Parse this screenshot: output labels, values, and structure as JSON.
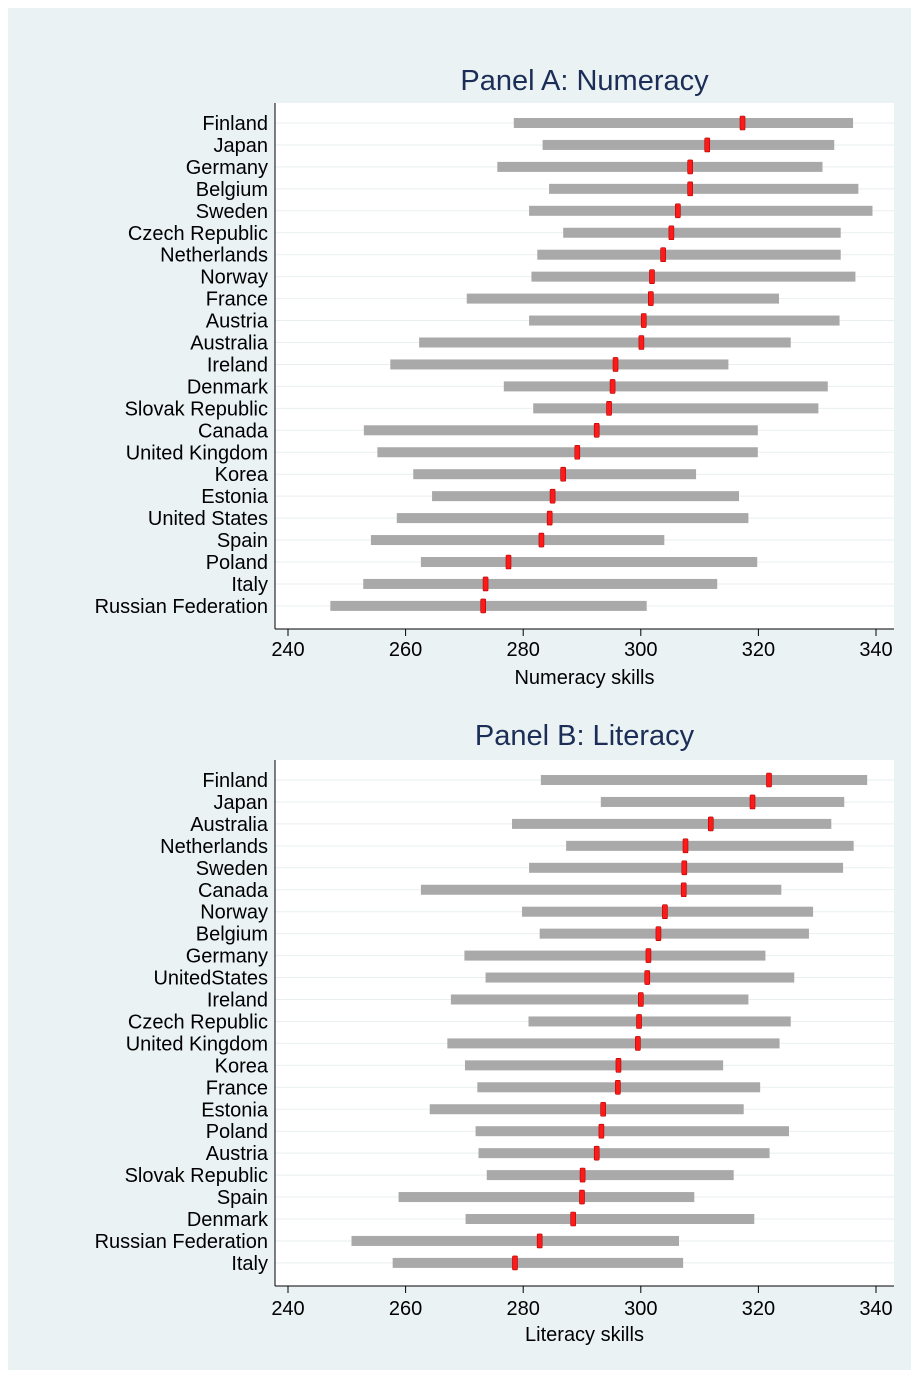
{
  "figure": {
    "background": "#eaf2f3",
    "plot_background": "#ffffff",
    "range_color": "#a9a9a9",
    "mean_color": "#ff1a1a",
    "title_color": "#1c2e57"
  },
  "chart_data": [
    {
      "type": "range",
      "title": "Panel A: Numeracy",
      "xlabel": "Numeracy skills",
      "xlim": [
        240,
        340
      ],
      "xticks": [
        240,
        260,
        280,
        300,
        320,
        340
      ],
      "grid": "horizontal",
      "series_names": [
        "low",
        "high",
        "mean"
      ],
      "categories": [
        "Finland",
        "Japan",
        "Germany",
        "Belgium",
        "Sweden",
        "Czech Republic",
        "Netherlands",
        "Norway",
        "France",
        "Austria",
        "Australia",
        "Ireland",
        "Denmark",
        "Slovak Republic",
        "Canada",
        "United Kingdom",
        "Korea",
        "Estonia",
        "United States",
        "Spain",
        "Poland",
        "Italy",
        "Russian Federation"
      ],
      "low": [
        278.4,
        283.3,
        275.6,
        284.4,
        281.0,
        286.8,
        282.4,
        281.4,
        270.4,
        281.0,
        262.3,
        257.4,
        276.7,
        281.7,
        252.9,
        255.2,
        261.3,
        264.5,
        258.5,
        254.1,
        262.6,
        252.8,
        247.2
      ],
      "high": [
        336.1,
        332.9,
        330.9,
        337.0,
        339.4,
        334.0,
        334.0,
        336.5,
        323.5,
        333.8,
        325.5,
        314.9,
        331.8,
        330.2,
        319.9,
        319.9,
        309.4,
        316.7,
        318.3,
        304.0,
        319.8,
        313.0,
        301.0
      ],
      "mean": [
        317.3,
        311.3,
        308.4,
        308.4,
        306.3,
        305.2,
        303.8,
        301.9,
        301.7,
        300.5,
        300.1,
        295.7,
        295.2,
        294.6,
        292.5,
        289.2,
        286.8,
        285.0,
        284.5,
        283.1,
        277.5,
        273.6,
        273.2
      ]
    },
    {
      "type": "range",
      "title": "Panel B: Literacy",
      "xlabel": "Literacy  skills",
      "xlim": [
        240,
        340
      ],
      "xticks": [
        240,
        260,
        280,
        300,
        320,
        340
      ],
      "grid": "horizontal",
      "series_names": [
        "low",
        "high",
        "mean"
      ],
      "categories": [
        "Finland",
        "Japan",
        "Australia",
        "Netherlands",
        "Sweden",
        "Canada",
        "Norway",
        "Belgium",
        "Germany",
        "UnitedStates",
        "Ireland",
        "Czech Republic",
        "United Kingdom",
        "Korea",
        "France",
        "Estonia",
        "Poland",
        "Austria",
        "Slovak Republic",
        "Spain",
        "Denmark",
        "Russian Federation",
        "Italy"
      ],
      "low": [
        283.0,
        293.2,
        278.1,
        287.3,
        281.0,
        262.6,
        279.8,
        282.8,
        270.0,
        273.6,
        267.7,
        280.9,
        267.1,
        270.1,
        272.2,
        264.1,
        271.9,
        272.4,
        273.8,
        258.8,
        270.2,
        250.8,
        257.8
      ],
      "high": [
        338.5,
        334.6,
        332.4,
        336.2,
        334.4,
        323.9,
        329.3,
        328.6,
        321.2,
        326.1,
        318.3,
        325.5,
        323.6,
        314.0,
        320.3,
        317.5,
        325.2,
        321.9,
        315.8,
        309.1,
        319.3,
        306.5,
        307.2
      ],
      "mean": [
        321.8,
        319.0,
        311.9,
        307.6,
        307.4,
        307.3,
        304.1,
        303.0,
        301.3,
        301.1,
        300.0,
        299.7,
        299.5,
        296.2,
        296.1,
        293.6,
        293.3,
        292.5,
        290.1,
        290.0,
        288.5,
        282.8,
        278.6
      ]
    }
  ]
}
